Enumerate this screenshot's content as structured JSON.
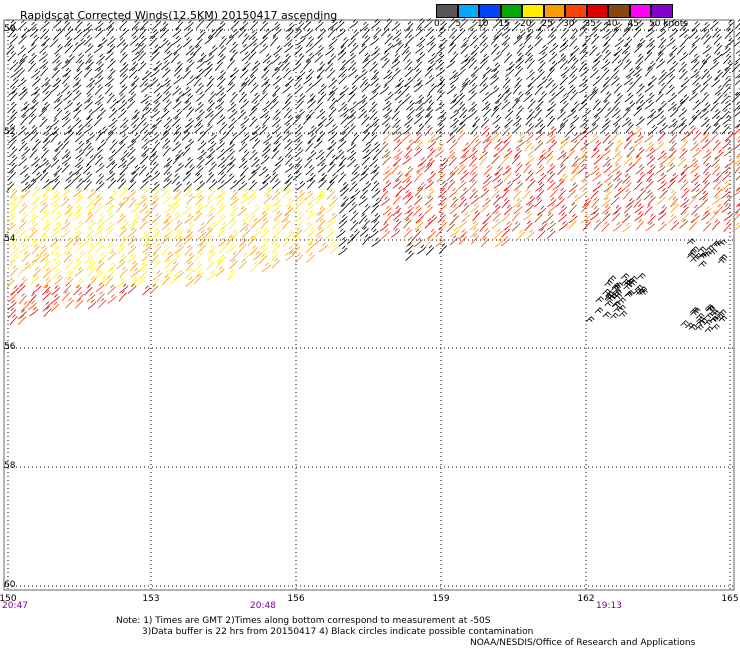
{
  "title": "Rapidscat Corrected Winds(12.5KM) 20150417 ascending",
  "legend": {
    "colors": [
      "#555555",
      "#00aaff",
      "#0044ff",
      "#00aa00",
      "#ffee00",
      "#ff9900",
      "#ff4400",
      "#dd0000",
      "#8b4513",
      "#ff00ff",
      "#8800cc"
    ],
    "labels": [
      "0",
      "5",
      "10",
      "15",
      "20",
      "25",
      "30",
      "35",
      "40",
      "45",
      "50 knots"
    ]
  },
  "axes": {
    "x_ticks": [
      "150",
      "153",
      "156",
      "159",
      "162",
      "165"
    ],
    "y_ticks": [
      "50",
      "52",
      "54",
      "56",
      "58",
      "60"
    ]
  },
  "times": [
    "20:47",
    "20:48",
    "19:13"
  ],
  "notes": [
    "Note: 1) Times are GMT 2)Times along bottom correspond to measurement at -50S",
    "3)Data buffer is 22 hrs from 20150417 4) Black circles indicate possible contamination"
  ],
  "credit": "NOAA/NESDIS/Office of Research and Applications"
}
